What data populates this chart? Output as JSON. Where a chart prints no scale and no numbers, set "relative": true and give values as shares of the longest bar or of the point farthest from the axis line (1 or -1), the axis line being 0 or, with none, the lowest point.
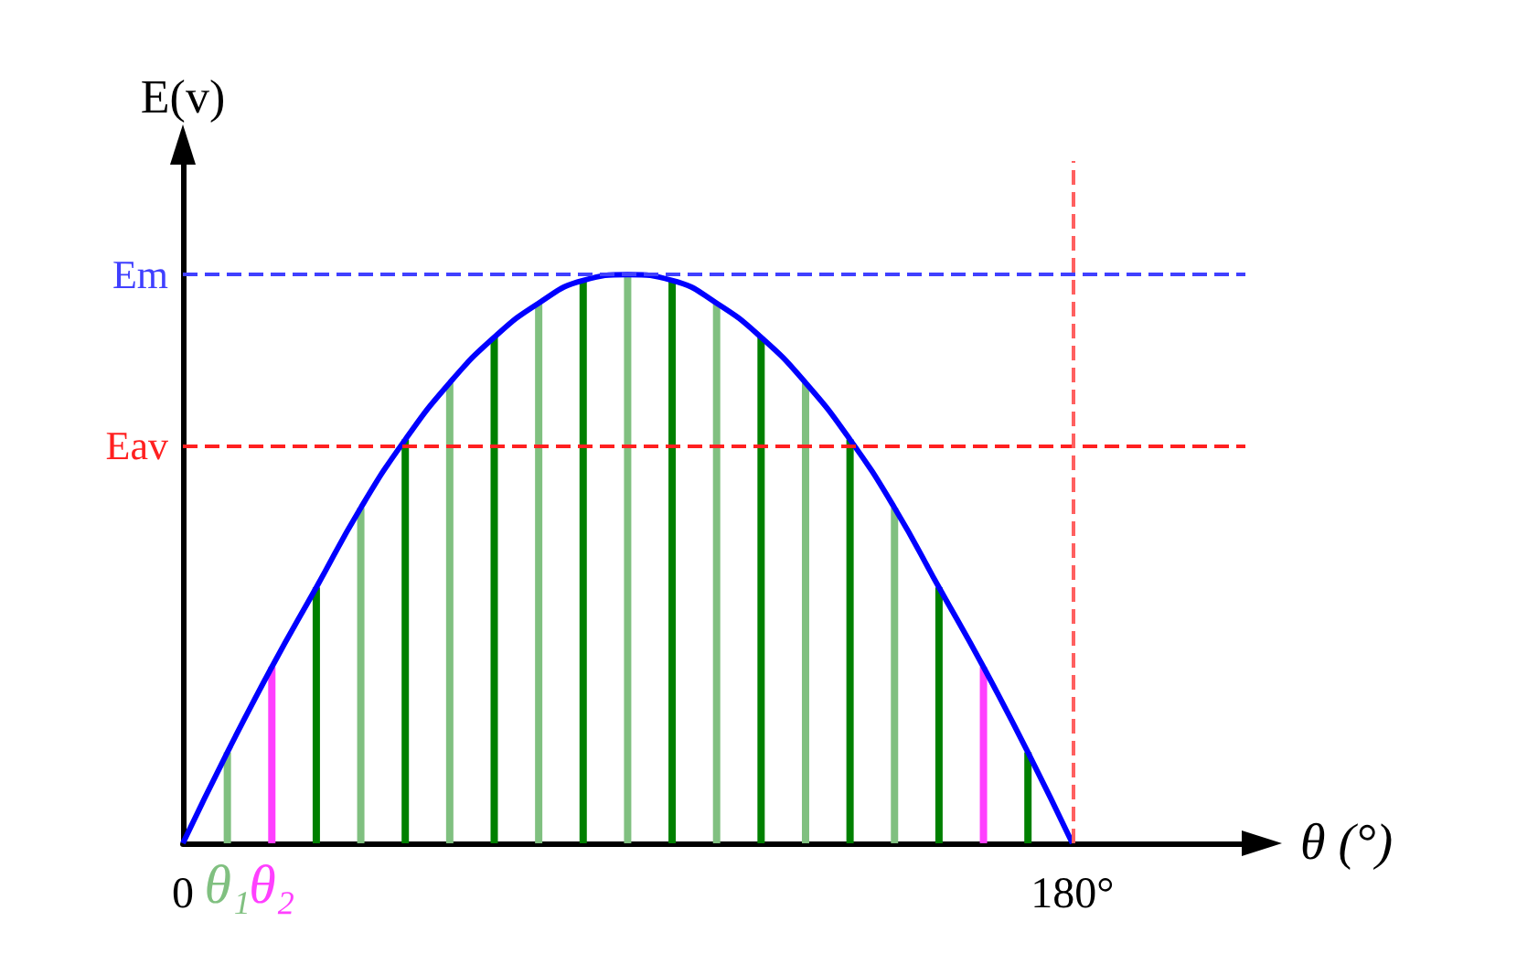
{
  "chart_data": {
    "type": "line",
    "relative": true,
    "xlabel": "θ (°)",
    "ylabel": "E(v)",
    "xlim": [
      0,
      215
    ],
    "xticks": [
      {
        "value": 0,
        "label": "0"
      },
      {
        "value": 180,
        "label": "180°"
      }
    ],
    "series": [
      {
        "color": "#0000ff",
        "x": [
          0,
          9,
          18,
          27,
          36,
          45,
          54,
          63,
          72,
          81,
          90,
          99,
          108,
          117,
          126,
          135,
          144,
          153,
          162,
          171,
          180
        ],
        "values": [
          0,
          0.16,
          0.31,
          0.45,
          0.59,
          0.71,
          0.81,
          0.89,
          0.95,
          0.99,
          1,
          0.99,
          0.95,
          0.89,
          0.81,
          0.71,
          0.59,
          0.45,
          0.31,
          0.16,
          0
        ]
      },
      {
        "type": "bar",
        "x": [
          9,
          18,
          27,
          36,
          45,
          54,
          63,
          72,
          81,
          90,
          99,
          108,
          117,
          126,
          135,
          144,
          153,
          162,
          171
        ],
        "values": [
          0.16,
          0.31,
          0.45,
          0.59,
          0.71,
          0.81,
          0.89,
          0.95,
          0.99,
          1,
          0.99,
          0.95,
          0.89,
          0.81,
          0.71,
          0.59,
          0.45,
          0.31,
          0.16
        ],
        "colors": [
          "#80c080",
          "#ff40ff",
          "#008000",
          "#80c080",
          "#008000",
          "#80c080",
          "#008000",
          "#80c080",
          "#008000",
          "#80c080",
          "#008000",
          "#80c080",
          "#008000",
          "#80c080",
          "#008000",
          "#80c080",
          "#008000",
          "#ff40ff",
          "#008000"
        ]
      }
    ],
    "ref_lines": [
      {
        "axis": "y",
        "value": 1,
        "label": "Em",
        "color": "#4040ff",
        "line_style": "dashed"
      },
      {
        "axis": "y",
        "value": 0.7,
        "label": "Eav",
        "color": "#ff2020",
        "line_style": "dashed"
      },
      {
        "axis": "x",
        "value": 180,
        "color": "#ff6060",
        "line_style": "dashed"
      }
    ],
    "annotations": [
      {
        "text": "θ₁",
        "x": 9,
        "y": 0
      },
      {
        "text": "θ₂",
        "x": 18,
        "y": 0
      }
    ]
  }
}
